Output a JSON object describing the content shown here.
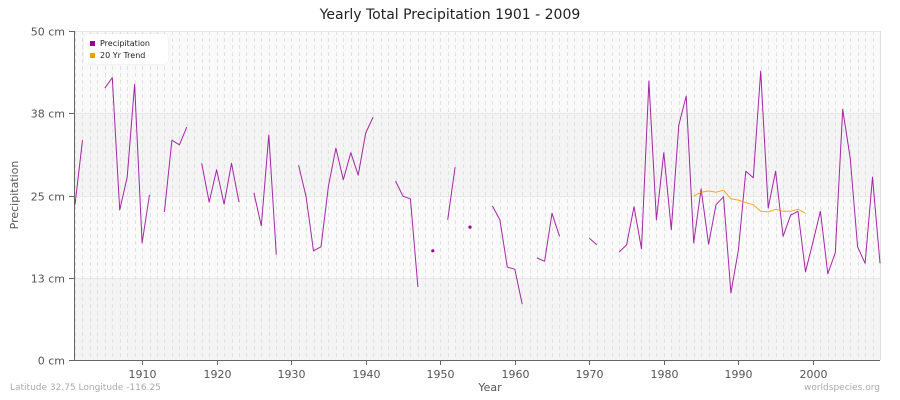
{
  "title": "Yearly Total Precipitation 1901 - 2009",
  "footer": {
    "location": "Latitude 32.75 Longitude -116.25",
    "source": "worldspecies.org"
  },
  "legend": {
    "items": [
      {
        "label": "Precipitation",
        "color": "#990099"
      },
      {
        "label": "20 Yr Trend",
        "color": "#ff9900"
      }
    ]
  },
  "axes": {
    "xlabel": "Year",
    "ylabel": "Precipitation",
    "y_ticks": [
      "0 cm",
      "13 cm",
      "25 cm",
      "38 cm",
      "50 cm"
    ],
    "x_ticks": [
      "1910",
      "1920",
      "1930",
      "1940",
      "1950",
      "1960",
      "1970",
      "1980",
      "1990",
      "2000"
    ]
  },
  "chart_data": {
    "type": "line",
    "title": "Yearly Total Precipitation 1901 - 2009",
    "xlabel": "Year",
    "ylabel": "Precipitation",
    "xlim": [
      1901,
      2009
    ],
    "ylim": [
      0,
      50
    ],
    "y_ticks": [
      0,
      12.5,
      25,
      37.5,
      50
    ],
    "y_tick_labels": [
      "0 cm",
      "13 cm",
      "25 cm",
      "38 cm",
      "50 cm"
    ],
    "x_ticks": [
      1910,
      1920,
      1930,
      1940,
      1950,
      1960,
      1970,
      1980,
      1990,
      2000
    ],
    "grid": true,
    "legend_position": "top-left",
    "series": [
      {
        "name": "Precipitation",
        "color": "#990099",
        "unit": "cm",
        "points": [
          [
            1901,
            23.6
          ],
          [
            1902,
            33.4
          ],
          [
            1903,
            null
          ],
          [
            1904,
            null
          ],
          [
            1905,
            41.3
          ],
          [
            1906,
            42.9
          ],
          [
            1907,
            22.8
          ],
          [
            1908,
            27.8
          ],
          [
            1909,
            41.9
          ],
          [
            1910,
            17.8
          ],
          [
            1911,
            25.1
          ],
          [
            1912,
            null
          ],
          [
            1913,
            22.5
          ],
          [
            1914,
            33.4
          ],
          [
            1915,
            32.7
          ],
          [
            1916,
            35.4
          ],
          [
            1917,
            null
          ],
          [
            1918,
            29.9
          ],
          [
            1919,
            24.0
          ],
          [
            1920,
            28.9
          ],
          [
            1921,
            23.7
          ],
          [
            1922,
            29.9
          ],
          [
            1923,
            24.0
          ],
          [
            1924,
            null
          ],
          [
            1925,
            25.4
          ],
          [
            1926,
            20.4
          ],
          [
            1927,
            34.2
          ],
          [
            1928,
            16.0
          ],
          [
            1929,
            null
          ],
          [
            1930,
            null
          ],
          [
            1931,
            29.6
          ],
          [
            1932,
            24.8
          ],
          [
            1933,
            16.6
          ],
          [
            1934,
            17.2
          ],
          [
            1935,
            26.4
          ],
          [
            1936,
            32.2
          ],
          [
            1937,
            27.4
          ],
          [
            1938,
            31.5
          ],
          [
            1939,
            28.1
          ],
          [
            1940,
            34.5
          ],
          [
            1941,
            36.9
          ],
          [
            1942,
            null
          ],
          [
            1943,
            null
          ],
          [
            1944,
            27.2
          ],
          [
            1945,
            24.9
          ],
          [
            1946,
            24.5
          ],
          [
            1947,
            11.1
          ],
          [
            1948,
            null
          ],
          [
            1949,
            16.6
          ],
          [
            1950,
            null
          ],
          [
            1951,
            21.3
          ],
          [
            1952,
            29.3
          ],
          [
            1953,
            null
          ],
          [
            1954,
            20.2
          ],
          [
            1955,
            null
          ],
          [
            1956,
            null
          ],
          [
            1957,
            23.4
          ],
          [
            1958,
            21.3
          ],
          [
            1959,
            14.1
          ],
          [
            1960,
            13.8
          ],
          [
            1961,
            8.5
          ],
          [
            1962,
            null
          ],
          [
            1963,
            15.5
          ],
          [
            1964,
            15.0
          ],
          [
            1965,
            22.3
          ],
          [
            1966,
            18.8
          ],
          [
            1967,
            null
          ],
          [
            1968,
            null
          ],
          [
            1969,
            null
          ],
          [
            1970,
            18.5
          ],
          [
            1971,
            17.5
          ],
          [
            1972,
            null
          ],
          [
            1973,
            null
          ],
          [
            1974,
            16.4
          ],
          [
            1975,
            17.5
          ],
          [
            1976,
            23.3
          ],
          [
            1977,
            16.9
          ],
          [
            1978,
            42.4
          ],
          [
            1979,
            21.3
          ],
          [
            1980,
            31.5
          ],
          [
            1981,
            19.8
          ],
          [
            1982,
            35.7
          ],
          [
            1983,
            40.1
          ],
          [
            1984,
            17.8
          ],
          [
            1985,
            26.0
          ],
          [
            1986,
            17.6
          ],
          [
            1987,
            23.6
          ],
          [
            1988,
            24.8
          ],
          [
            1989,
            10.2
          ],
          [
            1990,
            16.7
          ],
          [
            1991,
            28.7
          ],
          [
            1992,
            27.7
          ],
          [
            1993,
            43.9
          ],
          [
            1994,
            23.1
          ],
          [
            1995,
            28.7
          ],
          [
            1996,
            18.8
          ],
          [
            1997,
            22.0
          ],
          [
            1998,
            22.6
          ],
          [
            1999,
            13.4
          ],
          [
            2000,
            17.9
          ],
          [
            2001,
            22.6
          ],
          [
            2002,
            13.1
          ],
          [
            2003,
            16.3
          ],
          [
            2004,
            38.1
          ],
          [
            2005,
            30.7
          ],
          [
            2006,
            17.2
          ],
          [
            2007,
            14.7
          ],
          [
            2008,
            27.8
          ],
          [
            2009,
            14.7
          ]
        ]
      },
      {
        "name": "20 Yr Trend",
        "color": "#ff9900",
        "unit": "cm",
        "points": [
          [
            1984,
            24.9
          ],
          [
            1985,
            25.5
          ],
          [
            1986,
            25.7
          ],
          [
            1987,
            25.5
          ],
          [
            1988,
            25.8
          ],
          [
            1989,
            24.5
          ],
          [
            1990,
            24.3
          ],
          [
            1991,
            23.9
          ],
          [
            1992,
            23.6
          ],
          [
            1993,
            22.6
          ],
          [
            1994,
            22.5
          ],
          [
            1995,
            22.9
          ],
          [
            1996,
            22.6
          ],
          [
            1997,
            22.6
          ],
          [
            1998,
            22.9
          ],
          [
            1999,
            22.3
          ]
        ]
      }
    ]
  }
}
